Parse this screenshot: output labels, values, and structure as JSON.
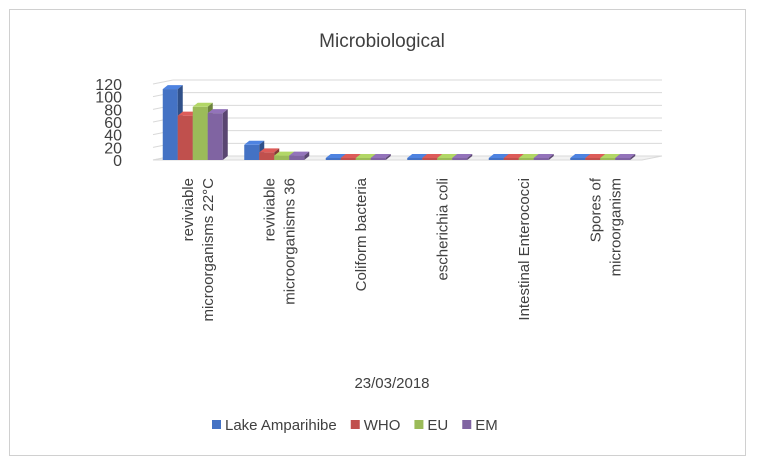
{
  "chart_data": {
    "type": "bar",
    "title": "Microbiological",
    "xlabel": "23/03/2018",
    "ylabel": "",
    "ylim": [
      0,
      120
    ],
    "yticks": [
      "0",
      "20",
      "40",
      "60",
      "80",
      "100",
      "120"
    ],
    "grid": true,
    "legend_position": "bottom",
    "three_d": true,
    "categories": [
      [
        "reviviable",
        "microorganisms 22°C"
      ],
      [
        "reviviable",
        "microorganisms 36"
      ],
      [
        "Coliform bacteria"
      ],
      [
        "escherichia coli"
      ],
      [
        "Intestinal Enterococci"
      ],
      [
        "Spores of",
        "microorganism"
      ]
    ],
    "series": [
      {
        "name": "Lake Amparihibe",
        "color": "#4472C4",
        "values": [
          112,
          24,
          0,
          0,
          0,
          0
        ]
      },
      {
        "name": "WHO",
        "color": "#C0504D",
        "values": [
          70,
          12,
          0,
          0,
          0,
          0
        ]
      },
      {
        "name": "EU",
        "color": "#9BBB59",
        "values": [
          84,
          7,
          0,
          0,
          0,
          0
        ]
      },
      {
        "name": "EM",
        "color": "#8064A2",
        "values": [
          74,
          7,
          0,
          0,
          0,
          0
        ]
      }
    ]
  }
}
